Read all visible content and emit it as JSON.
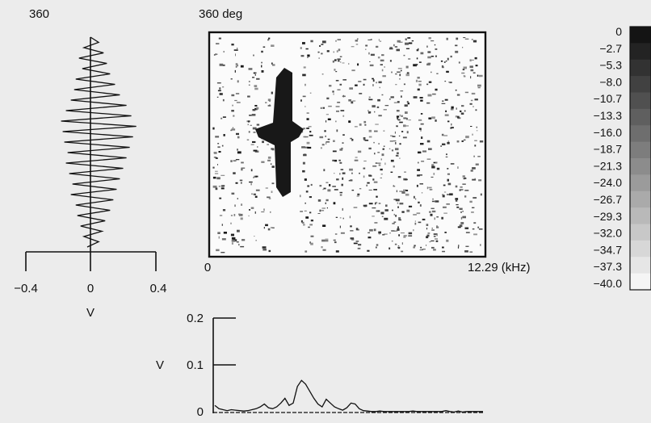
{
  "waveform": {
    "corner_label": "360",
    "x_ticks": [
      "−0.4",
      "0",
      "0.4"
    ],
    "x_unit": "V"
  },
  "spectrogram": {
    "corner_label": "360 deg",
    "x_start": "0",
    "x_end": "12.29 (kHz)"
  },
  "colorbar": {
    "labels": [
      "0",
      "−2.7",
      "−5.3",
      "−8.0",
      "−10.7",
      "−13.3",
      "−16.0",
      "−18.7",
      "−21.3",
      "−24.0",
      "−26.7",
      "−29.3",
      "−32.0",
      "−34.7",
      "−37.3",
      "−40.0"
    ]
  },
  "spectrum": {
    "y_ticks": [
      "0.2",
      "0.1",
      "0"
    ],
    "y_unit": "V"
  },
  "chart_data": [
    {
      "type": "line",
      "orientation": "vertical",
      "title": "360",
      "xlabel": "V",
      "xlim": [
        -0.4,
        0.4
      ],
      "x_ticks": [
        -0.4,
        0,
        0.4
      ],
      "note": "vertical oscillating waveform centered at 0",
      "values": [
        0.0,
        0.05,
        -0.04,
        0.08,
        -0.07,
        0.1,
        -0.05,
        0.12,
        -0.09,
        0.15,
        -0.1,
        0.18,
        -0.12,
        0.22,
        -0.15,
        0.25,
        -0.18,
        0.28,
        -0.17,
        0.26,
        -0.16,
        0.24,
        -0.14,
        0.22,
        -0.15,
        0.2,
        -0.13,
        0.18,
        -0.11,
        0.16,
        -0.12,
        0.14,
        -0.09,
        0.12,
        -0.08,
        0.09,
        -0.06,
        0.07,
        -0.04,
        0.05,
        -0.02
      ]
    },
    {
      "type": "heatmap",
      "title": "360 deg",
      "xlim": [
        0,
        12.29
      ],
      "xlabel": "(kHz)",
      "colorbar_range": [
        -40.0,
        0
      ],
      "note": "dense speckled spectrogram with a dark vertical band near 1.2 kHz"
    },
    {
      "type": "line",
      "ylabel": "V",
      "ylim": [
        0,
        0.2
      ],
      "y_ticks": [
        0,
        0.1,
        0.2
      ],
      "values": [
        0.015,
        0.008,
        0.006,
        0.004,
        0.006,
        0.005,
        0.004,
        0.003,
        0.004,
        0.006,
        0.008,
        0.012,
        0.018,
        0.01,
        0.008,
        0.012,
        0.02,
        0.03,
        0.015,
        0.02,
        0.055,
        0.068,
        0.06,
        0.045,
        0.03,
        0.018,
        0.012,
        0.028,
        0.02,
        0.012,
        0.008,
        0.005,
        0.01,
        0.02,
        0.018,
        0.008,
        0.004,
        0.003,
        0.002,
        0.002,
        0.003,
        0.002,
        0.002,
        0.002,
        0.002,
        0.002,
        0.002,
        0.002,
        0.003,
        0.002,
        0.002,
        0.002,
        0.002,
        0.002,
        0.002,
        0.002,
        0.004,
        0.002,
        0.001,
        0.003,
        0.001,
        0.002,
        0.002,
        0.002,
        0.002,
        0.002
      ]
    }
  ]
}
